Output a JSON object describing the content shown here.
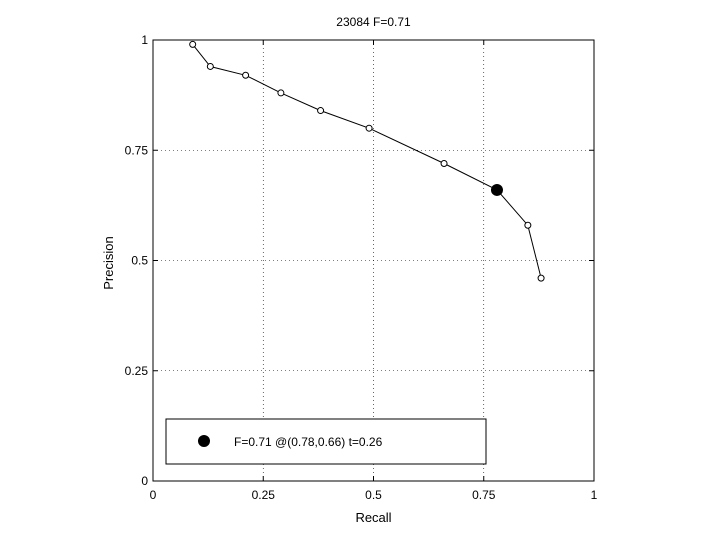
{
  "chart_data": {
    "type": "line",
    "title": "23084 F=0.71",
    "xlabel": "Recall",
    "ylabel": "Precision",
    "xlim": [
      0,
      1
    ],
    "ylim": [
      0,
      1
    ],
    "grid": true,
    "xticks": [
      "0",
      "0.25",
      "0.5",
      "0.75",
      "1"
    ],
    "yticks": [
      "0",
      "0.25",
      "0.5",
      "0.75",
      "1"
    ],
    "tick_values": [
      0,
      0.25,
      0.5,
      0.75,
      1
    ],
    "series": [
      {
        "x": [
          0.09,
          0.13,
          0.21,
          0.29,
          0.38,
          0.49,
          0.66,
          0.78,
          0.85,
          0.88
        ],
        "y": [
          0.99,
          0.94,
          0.92,
          0.88,
          0.84,
          0.8,
          0.72,
          0.66,
          0.58,
          0.46
        ],
        "marker": "open-circle",
        "color": "#000000"
      }
    ],
    "best_point": {
      "x": 0.78,
      "y": 0.66,
      "marker": "filled-circle",
      "color": "#000000"
    },
    "legend": {
      "text": "F=0.71 @(0.78,0.66) t=0.26",
      "placement": "bottom-left"
    }
  }
}
